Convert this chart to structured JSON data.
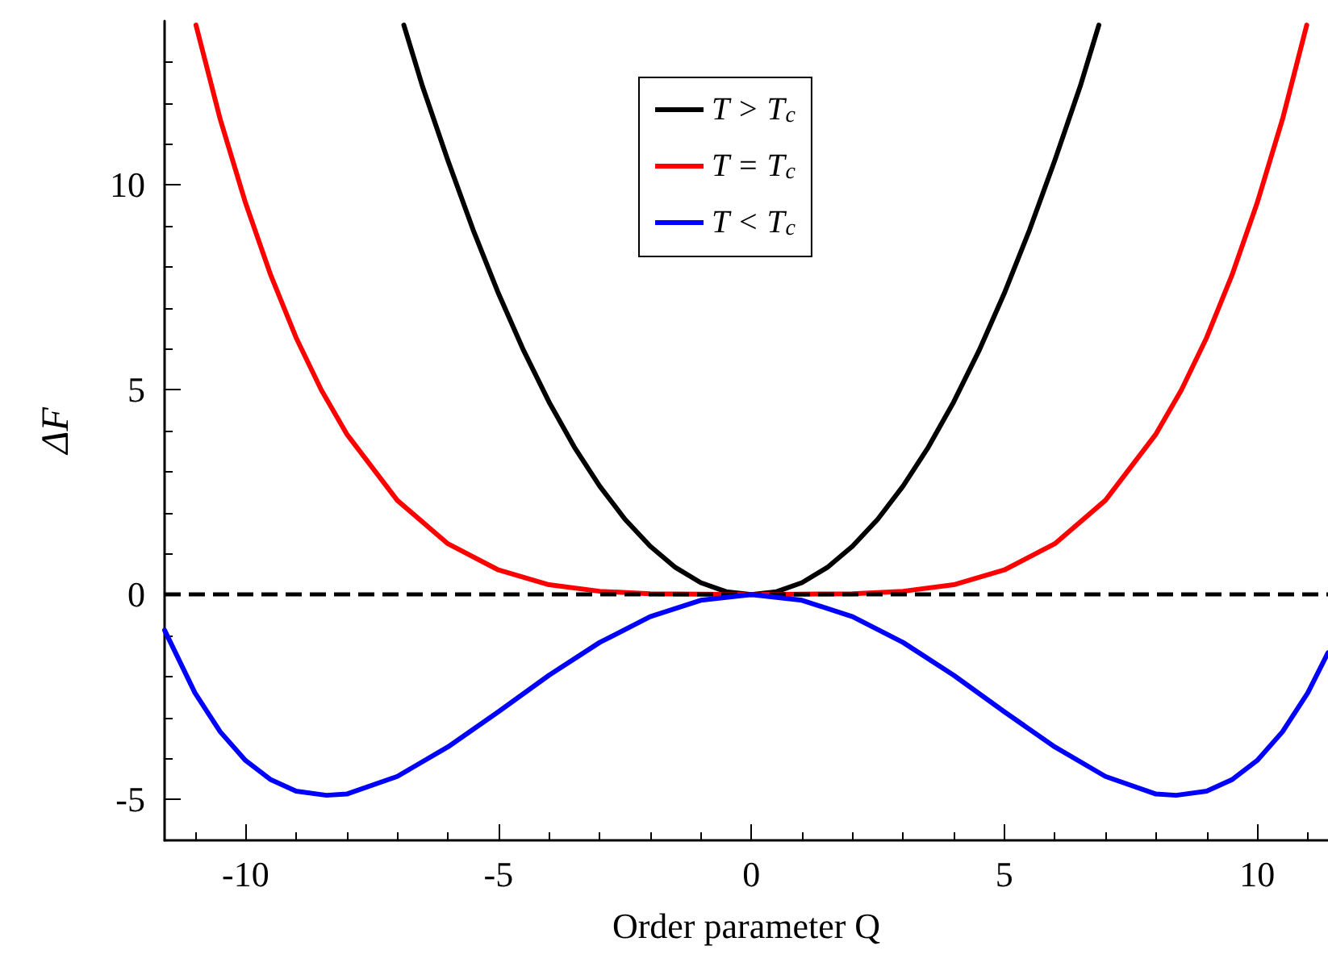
{
  "chart_data": {
    "type": "line",
    "xlabel": "Order parameter Q",
    "ylabel": "ΔF",
    "xlim": [
      -11.6,
      11.4
    ],
    "ylim": [
      -6,
      14
    ],
    "xticks": [
      -10,
      -5,
      0,
      5,
      10
    ],
    "yticks": [
      -5,
      0,
      5,
      10
    ],
    "grid": false,
    "legend": "top",
    "marker": "none",
    "line_style": "solid",
    "series": [
      {
        "name": "T > T$_{c}$",
        "color": "#000000",
        "x": [
          -6.87,
          -6.5,
          -6,
          -5.5,
          -5,
          -4.5,
          -4,
          -3.5,
          -3,
          -2.5,
          -2,
          -1.5,
          -1,
          -0.5,
          0,
          0.5,
          1,
          1.5,
          2,
          2.5,
          3,
          3.5,
          4,
          4.5,
          5,
          5.5,
          6,
          6.5,
          6.87
        ],
        "values": [
          13.9,
          12.4,
          10.6,
          8.9,
          7.35,
          5.95,
          4.7,
          3.6,
          2.65,
          1.84,
          1.18,
          0.66,
          0.29,
          0.07,
          0,
          0.07,
          0.29,
          0.66,
          1.18,
          1.84,
          2.65,
          3.6,
          4.7,
          5.95,
          7.35,
          8.9,
          10.6,
          12.4,
          13.9
        ]
      },
      {
        "name": "T = T$_{c}$",
        "color": "#ff0000",
        "x": [
          -10.98,
          -10.5,
          -10,
          -9.5,
          -9,
          -8.5,
          -8,
          -7,
          -6,
          -5,
          -4,
          -3,
          -2,
          0,
          2,
          3,
          4,
          5,
          6,
          7,
          8,
          8.5,
          9,
          9.5,
          10,
          10.5,
          10.98
        ],
        "values": [
          13.9,
          11.6,
          9.56,
          7.79,
          6.27,
          4.99,
          3.92,
          2.3,
          1.24,
          0.6,
          0.24,
          0.08,
          0.02,
          0,
          0.02,
          0.08,
          0.24,
          0.6,
          1.24,
          2.3,
          3.92,
          4.99,
          6.27,
          7.79,
          9.56,
          11.6,
          13.9
        ]
      },
      {
        "name": "T < T$_{c}$",
        "color": "#0000ff",
        "x": [
          -11.6,
          -11,
          -10.5,
          -10,
          -9.5,
          -9,
          -8.4,
          -8,
          -7,
          -6,
          -5,
          -4,
          -3,
          -2,
          -1,
          0,
          1,
          2,
          3,
          4,
          5,
          6,
          7,
          8,
          8.4,
          9,
          9.5,
          10,
          10.5,
          11,
          11.4
        ],
        "values": [
          -0.87,
          -2.4,
          -3.35,
          -4.05,
          -4.52,
          -4.8,
          -4.9,
          -4.87,
          -4.44,
          -3.72,
          -2.86,
          -1.97,
          -1.17,
          -0.54,
          -0.14,
          0,
          -0.14,
          -0.54,
          -1.17,
          -1.97,
          -2.86,
          -3.72,
          -4.44,
          -4.87,
          -4.9,
          -4.8,
          -4.52,
          -4.05,
          -3.35,
          -2.4,
          -1.42
        ]
      }
    ],
    "ref_lines": [
      {
        "axis": "y",
        "value": 0,
        "color": "#000000",
        "line_style": "dashed"
      }
    ]
  }
}
